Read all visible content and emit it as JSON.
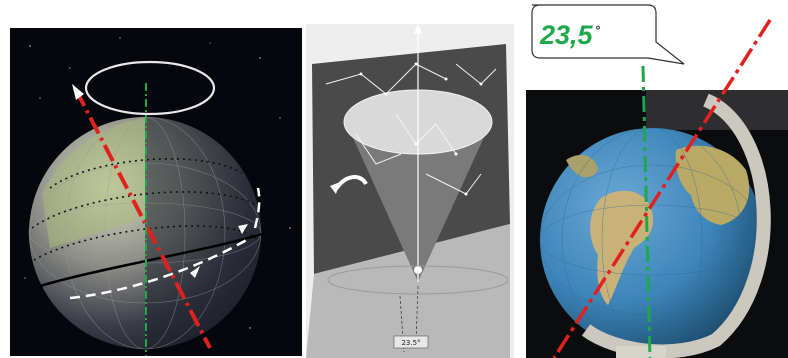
{
  "callout": {
    "angle_label": "23,5",
    "degree_symbol": "°"
  },
  "sky_chart": {
    "angle_marker": "23.5°"
  },
  "colors": {
    "axis_tilted": "#e0211d",
    "axis_vertical": "#1ea84a",
    "ocean": "#3d86b9",
    "land": "#c9b27a",
    "space": "#05070c"
  }
}
